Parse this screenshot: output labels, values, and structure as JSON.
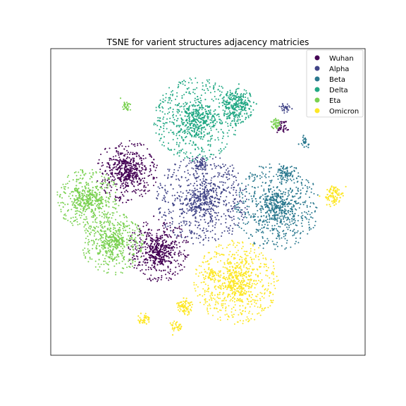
{
  "chart_data": {
    "type": "scatter",
    "title": "TSNE for varient structures adjacency matricies",
    "xlabel": "",
    "ylabel": "",
    "axis_ticks": false,
    "grid": false,
    "legend_placement": "top-right",
    "series": [
      {
        "name": "Wuhan",
        "color": "#440154"
      },
      {
        "name": "Alpha",
        "color": "#414487"
      },
      {
        "name": "Beta",
        "color": "#2a788e"
      },
      {
        "name": "Delta",
        "color": "#22a884"
      },
      {
        "name": "Eta",
        "color": "#7ad151"
      },
      {
        "name": "Omicron",
        "color": "#fde725"
      }
    ]
  }
}
